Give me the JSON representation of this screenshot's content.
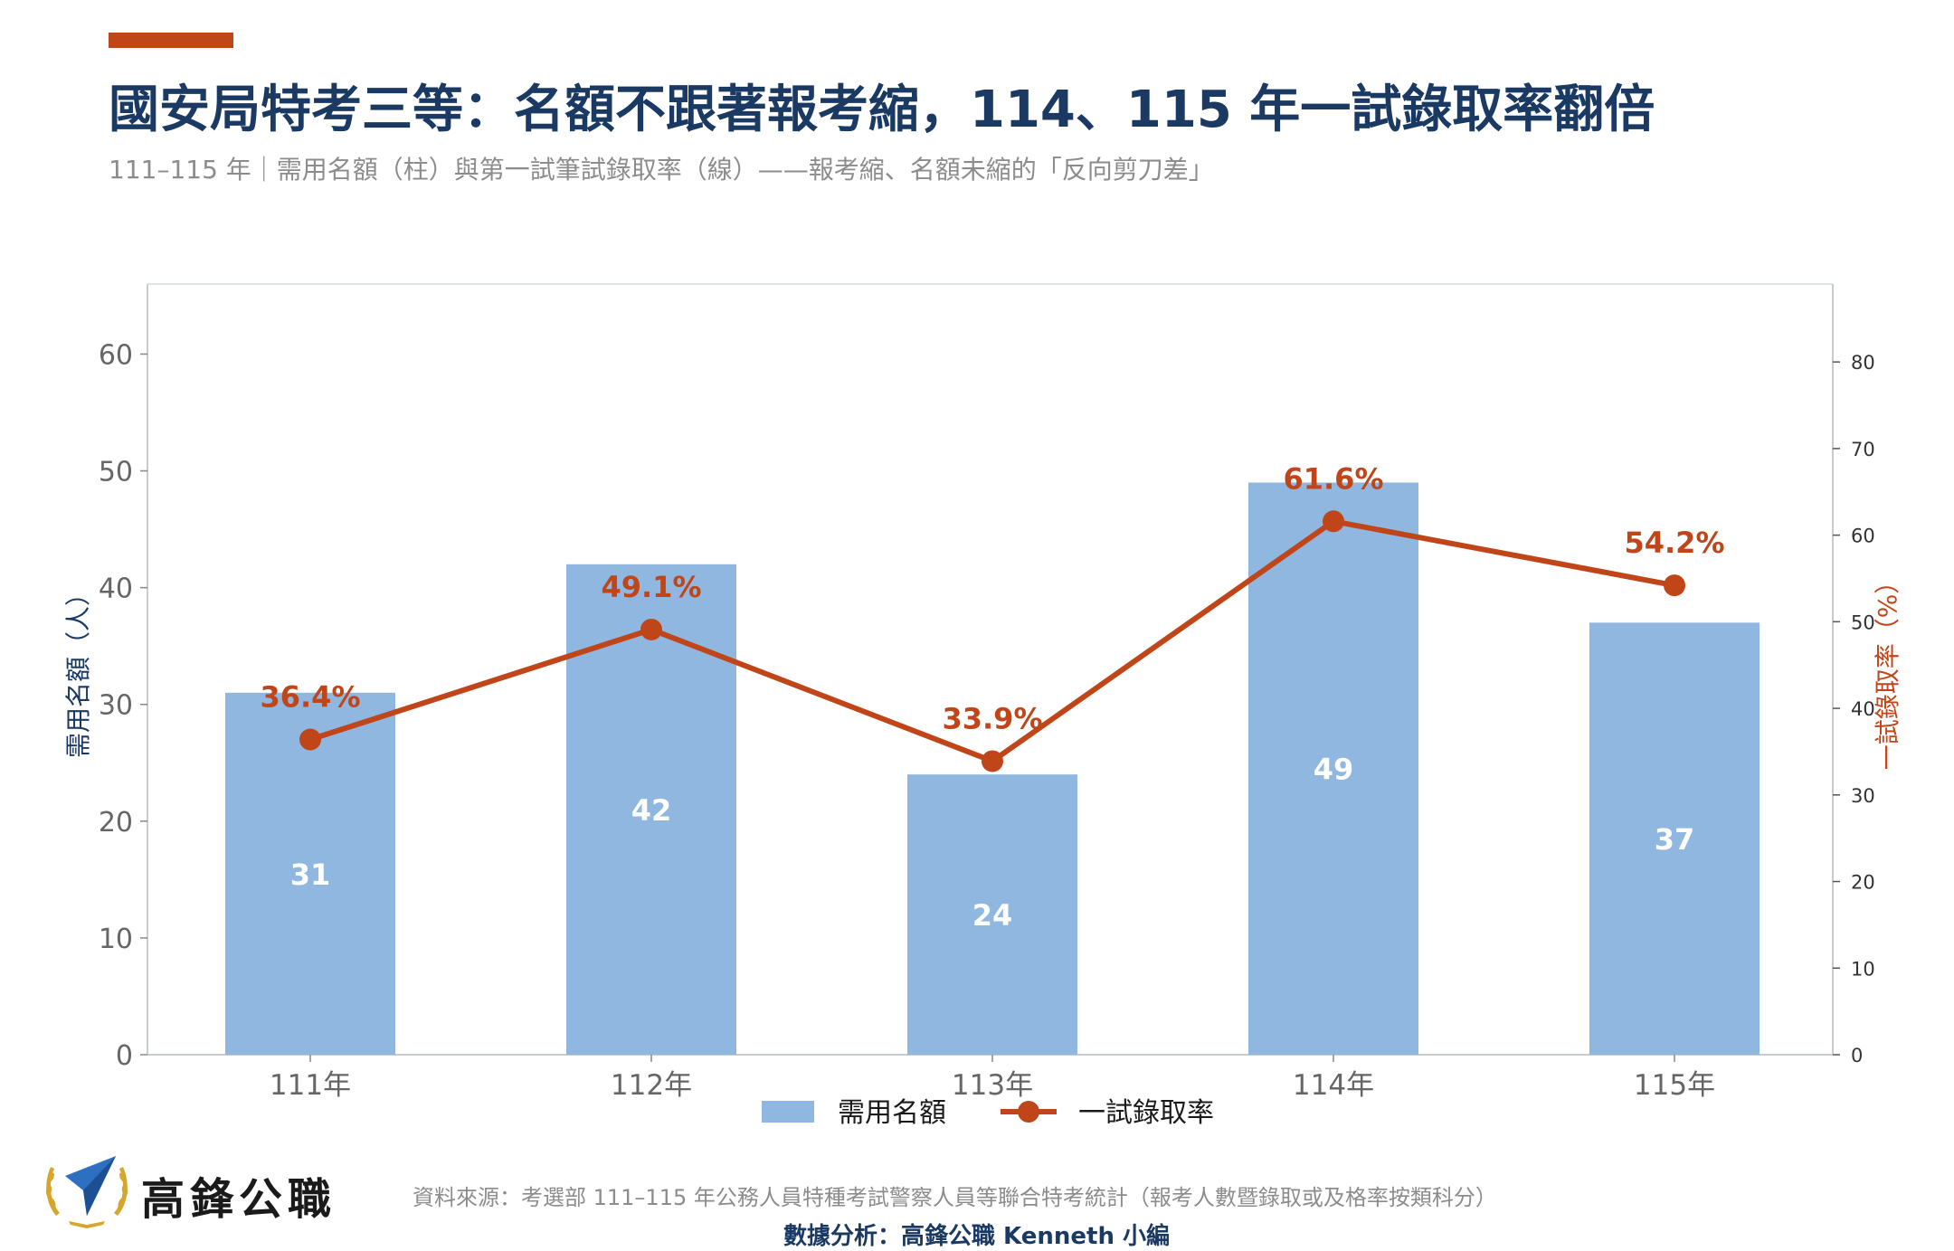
{
  "header": {
    "title": "國安局特考三等：名額不跟著報考縮，114、115 年一試錄取率翻倍",
    "subtitle": "111–115 年｜需用名額（柱）與第一試筆試錄取率（線）——報考縮、名額未縮的「反向剪刀差」"
  },
  "colors": {
    "accent": "#c0461a",
    "title": "#1b3a63",
    "bar": "#8fb7df",
    "line": "#c0461a",
    "axis": "#c7ccd1",
    "tick_text": "#666666"
  },
  "chart_data": {
    "type": "bar",
    "categories": [
      "111年",
      "112年",
      "113年",
      "114年",
      "115年"
    ],
    "series": [
      {
        "name": "需用名額",
        "type": "bar",
        "axis": "left",
        "values": [
          31,
          42,
          24,
          49,
          37
        ],
        "labels": [
          "31",
          "42",
          "24",
          "49",
          "37"
        ]
      },
      {
        "name": "一試錄取率",
        "type": "line",
        "axis": "right",
        "values": [
          36.4,
          49.1,
          33.9,
          61.6,
          54.2
        ],
        "labels": [
          "36.4%",
          "49.1%",
          "33.9%",
          "61.6%",
          "54.2%"
        ]
      }
    ],
    "ylabel": "需用名額（人）",
    "y2label": "一試錄取率（%）",
    "ylim": [
      0,
      66
    ],
    "y2lim": [
      0,
      89
    ],
    "yticks": [
      "0",
      "10",
      "20",
      "30",
      "40",
      "50",
      "60"
    ],
    "y2ticks": [
      "0",
      "10",
      "20",
      "30",
      "40",
      "50",
      "60",
      "70",
      "80"
    ],
    "legend_position": "bottom-center",
    "grid": false
  },
  "footer": {
    "logo_text": "高鋒公職",
    "source": "資料來源：考選部 111–115 年公務人員特種考試警察人員等聯合特考統計（報考人數暨錄取或及格率按類科分）",
    "credit": "數據分析：高鋒公職 Kenneth 小編"
  }
}
